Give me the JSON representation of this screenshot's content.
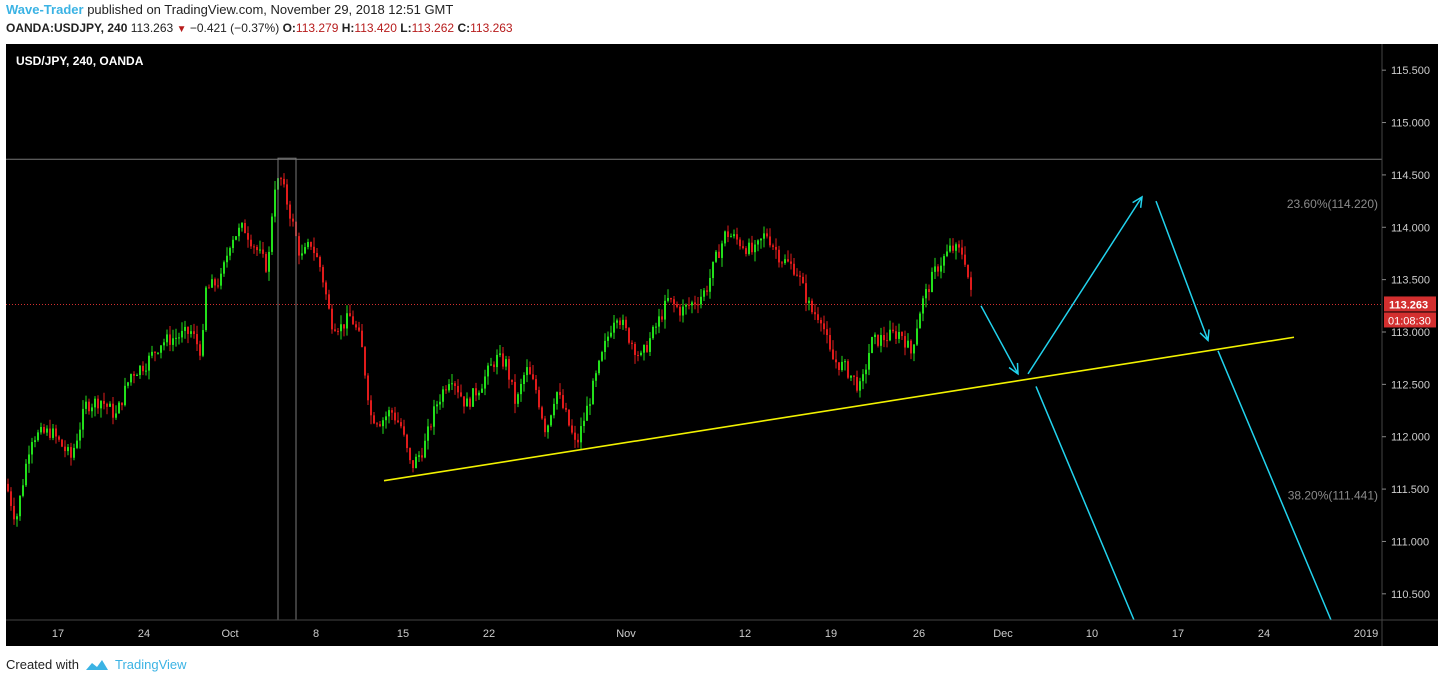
{
  "header": {
    "author": "Wave-Trader",
    "published_text": "published on TradingView.com, November 29, 2018 12:51 GMT",
    "symbol": "OANDA:USDJPY, 240",
    "last": "113.263",
    "change": "−0.421 (−0.37%)",
    "o_label": "O:",
    "o_value": "113.279",
    "h_label": "H:",
    "h_value": "113.420",
    "l_label": "L:",
    "l_value": "113.262",
    "c_label": "C:",
    "c_value": "113.263"
  },
  "footer": {
    "created_with": "Created with",
    "brand": "TradingView"
  },
  "chart_data": {
    "type": "candlestick",
    "title": "USD/JPY, 240, OANDA",
    "ylim": [
      110.25,
      115.75
    ],
    "y_ticks": [
      "110.500",
      "111.000",
      "111.500",
      "112.000",
      "112.500",
      "113.000",
      "113.500",
      "114.000",
      "114.500",
      "115.000",
      "115.500"
    ],
    "x_ticks": [
      "17",
      "24",
      "Oct",
      "8",
      "15",
      "22",
      "Nov",
      "12",
      "19",
      "26",
      "Dec",
      "10",
      "17",
      "24",
      "2019"
    ],
    "current_price": "113.263",
    "countdown": "01:08:30",
    "fib_levels": [
      {
        "label": "23.60%(114.220)",
        "price": 114.22
      },
      {
        "label": "38.20%(111.441)",
        "price": 111.441
      }
    ],
    "price_path": [
      [
        0,
        111.55
      ],
      [
        10,
        111.2
      ],
      [
        25,
        112.0
      ],
      [
        45,
        112.05
      ],
      [
        65,
        111.8
      ],
      [
        80,
        112.3
      ],
      [
        95,
        112.35
      ],
      [
        110,
        112.2
      ],
      [
        125,
        112.6
      ],
      [
        140,
        112.7
      ],
      [
        155,
        112.9
      ],
      [
        170,
        112.95
      ],
      [
        185,
        113.0
      ],
      [
        196,
        112.8
      ],
      [
        200,
        113.4
      ],
      [
        215,
        113.5
      ],
      [
        225,
        113.9
      ],
      [
        238,
        114.0
      ],
      [
        250,
        113.8
      ],
      [
        262,
        113.6
      ],
      [
        268,
        114.4
      ],
      [
        275,
        114.45
      ],
      [
        285,
        114.1
      ],
      [
        295,
        113.7
      ],
      [
        305,
        113.85
      ],
      [
        315,
        113.6
      ],
      [
        325,
        113.1
      ],
      [
        335,
        113.05
      ],
      [
        345,
        113.15
      ],
      [
        355,
        112.9
      ],
      [
        365,
        112.2
      ],
      [
        375,
        112.15
      ],
      [
        385,
        112.25
      ],
      [
        395,
        112.1
      ],
      [
        405,
        111.7
      ],
      [
        418,
        111.9
      ],
      [
        430,
        112.3
      ],
      [
        445,
        112.6
      ],
      [
        460,
        112.3
      ],
      [
        475,
        112.5
      ],
      [
        490,
        112.75
      ],
      [
        500,
        112.7
      ],
      [
        510,
        112.3
      ],
      [
        520,
        112.65
      ],
      [
        530,
        112.45
      ],
      [
        540,
        112.05
      ],
      [
        550,
        112.45
      ],
      [
        560,
        112.2
      ],
      [
        570,
        111.9
      ],
      [
        585,
        112.4
      ],
      [
        600,
        112.9
      ],
      [
        610,
        113.2
      ],
      [
        620,
        113.0
      ],
      [
        635,
        112.75
      ],
      [
        650,
        113.05
      ],
      [
        662,
        113.3
      ],
      [
        675,
        113.2
      ],
      [
        690,
        113.3
      ],
      [
        700,
        113.4
      ],
      [
        710,
        113.7
      ],
      [
        720,
        113.95
      ],
      [
        735,
        113.85
      ],
      [
        748,
        113.75
      ],
      [
        760,
        113.95
      ],
      [
        775,
        113.7
      ],
      [
        790,
        113.6
      ],
      [
        805,
        113.2
      ],
      [
        815,
        113.15
      ],
      [
        825,
        112.75
      ],
      [
        840,
        112.65
      ],
      [
        855,
        112.45
      ],
      [
        865,
        112.9
      ],
      [
        880,
        112.95
      ],
      [
        895,
        113.0
      ],
      [
        905,
        112.8
      ],
      [
        915,
        113.25
      ],
      [
        930,
        113.6
      ],
      [
        945,
        113.8
      ],
      [
        958,
        113.75
      ],
      [
        966,
        113.3
      ]
    ],
    "annotations": {
      "support_line": [
        [
          378,
          111.58
        ],
        [
          1288,
          112.95
        ]
      ],
      "resistance_line": [
        0,
        114.65
      ],
      "projection_arrows": [
        [
          [
            975,
            113.25
          ],
          [
            1012,
            112.6
          ]
        ],
        [
          [
            1022,
            112.6
          ],
          [
            1136,
            114.29
          ]
        ],
        [
          [
            1150,
            114.25
          ],
          [
            1202,
            112.92
          ]
        ]
      ],
      "projection_lines": [
        [
          [
            1030,
            112.48
          ],
          [
            1128,
            110.25
          ]
        ],
        [
          [
            1212,
            112.82
          ],
          [
            1325,
            110.25
          ]
        ]
      ]
    }
  }
}
